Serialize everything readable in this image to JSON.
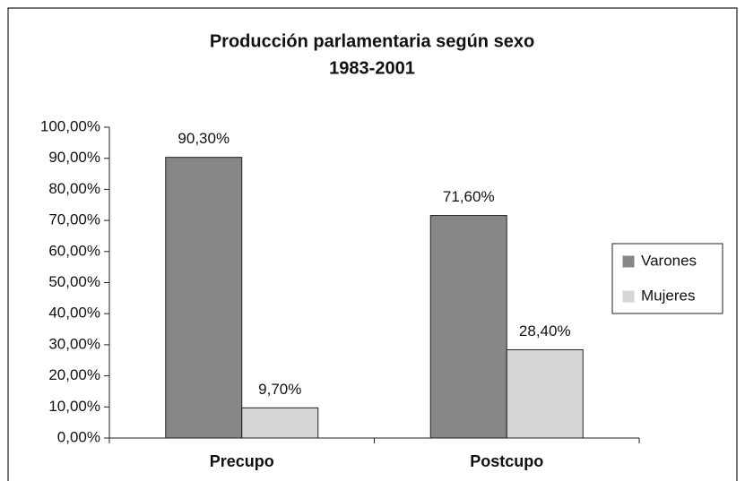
{
  "chart_data": {
    "type": "bar",
    "title": "Producción parlamentaria según sexo",
    "subtitle": "1983-2001",
    "categories": [
      "Precupo",
      "Postcupo"
    ],
    "series": [
      {
        "name": "Varones",
        "color": "#87878a",
        "values": [
          90.3,
          71.6
        ],
        "value_labels": [
          "90,30%",
          "71,60%"
        ]
      },
      {
        "name": "Mujeres",
        "color": "#d6d6d6",
        "values": [
          9.7,
          28.4
        ],
        "value_labels": [
          "9,70%",
          "28,40%"
        ]
      }
    ],
    "ylim": [
      0,
      100
    ],
    "yticks": [
      {
        "value": 0,
        "label": "0,00%"
      },
      {
        "value": 10,
        "label": "10,00%"
      },
      {
        "value": 20,
        "label": "20,00%"
      },
      {
        "value": 30,
        "label": "30,00%"
      },
      {
        "value": 40,
        "label": "40,00%"
      },
      {
        "value": 50,
        "label": "50,00%"
      },
      {
        "value": 60,
        "label": "60,00%"
      },
      {
        "value": 70,
        "label": "70,00%"
      },
      {
        "value": 80,
        "label": "80,00%"
      },
      {
        "value": 90,
        "label": "90,00%"
      },
      {
        "value": 100,
        "label": "100,00%"
      }
    ],
    "grid": false,
    "legend": "right"
  }
}
